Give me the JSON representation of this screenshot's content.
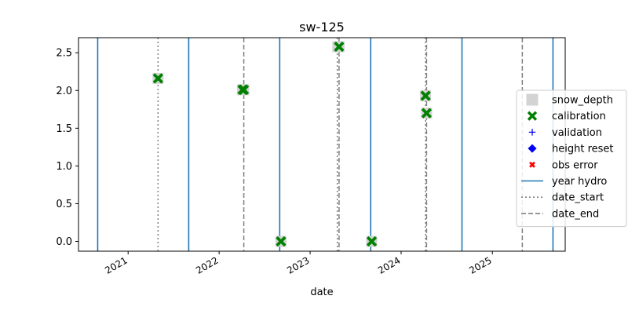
{
  "chart_data": {
    "type": "scatter",
    "title": "sw-125",
    "xlabel": "date",
    "ylabel": "",
    "xlim": [
      "2020-06-16",
      "2025-10-20"
    ],
    "ylim": [
      -0.13,
      2.7
    ],
    "x_ticks": [
      {
        "date": "2021-01-01",
        "label": "2021"
      },
      {
        "date": "2022-01-01",
        "label": "2022"
      },
      {
        "date": "2023-01-01",
        "label": "2023"
      },
      {
        "date": "2024-01-01",
        "label": "2024"
      },
      {
        "date": "2025-01-01",
        "label": "2025"
      }
    ],
    "y_ticks": [
      {
        "value": 0.0,
        "label": "0.0"
      },
      {
        "value": 0.5,
        "label": "0.5"
      },
      {
        "value": 1.0,
        "label": "1.0"
      },
      {
        "value": 1.5,
        "label": "1.5"
      },
      {
        "value": 2.0,
        "label": "2.0"
      },
      {
        "value": 2.5,
        "label": "2.5"
      }
    ],
    "grid": false,
    "legend_position": "right",
    "colors": {
      "snow_depth": "#d3d3d3",
      "calibration": "#008000",
      "validation": "#0000ff",
      "height_reset": "#0000ff",
      "obs_error": "#ff0000",
      "year_hydro": "#1f77b4",
      "date_start": "#808080",
      "date_end": "#808080"
    },
    "series": [
      {
        "name": "snow_depth",
        "marker": "square",
        "points": [
          {
            "x": "2021-05-01",
            "y": 2.16
          },
          {
            "x": "2022-04-05",
            "y": 2.01
          },
          {
            "x": "2022-04-10",
            "y": 2.01
          },
          {
            "x": "2022-09-06",
            "y": 0.0
          },
          {
            "x": "2023-04-22",
            "y": 2.58
          },
          {
            "x": "2023-04-27",
            "y": 2.58
          },
          {
            "x": "2023-09-05",
            "y": 0.0
          },
          {
            "x": "2024-04-08",
            "y": 1.93
          },
          {
            "x": "2024-04-12",
            "y": 1.7
          }
        ]
      },
      {
        "name": "calibration",
        "marker": "X",
        "points": [
          {
            "x": "2021-05-01",
            "y": 2.16
          },
          {
            "x": "2022-04-05",
            "y": 2.01
          },
          {
            "x": "2022-04-10",
            "y": 2.01
          },
          {
            "x": "2022-09-06",
            "y": 0.0
          },
          {
            "x": "2023-04-27",
            "y": 2.58
          },
          {
            "x": "2023-09-05",
            "y": 0.0
          },
          {
            "x": "2024-04-08",
            "y": 1.93
          },
          {
            "x": "2024-04-12",
            "y": 1.7
          }
        ]
      },
      {
        "name": "validation",
        "marker": "plus",
        "points": []
      },
      {
        "name": "height reset",
        "marker": "diamond",
        "points": []
      },
      {
        "name": "obs error",
        "marker": "x",
        "points": []
      }
    ],
    "vlines": [
      {
        "name": "year hydro",
        "style": "solid",
        "dates": [
          "2020-09-01",
          "2021-09-01",
          "2022-09-01",
          "2023-09-01",
          "2024-09-01",
          "2025-09-01"
        ]
      },
      {
        "name": "date_start",
        "style": "dotted",
        "dates": [
          "2021-05-01",
          "2023-04-20",
          "2024-04-08"
        ]
      },
      {
        "name": "date_end",
        "style": "dashed",
        "dates": [
          "2022-04-10",
          "2023-04-27",
          "2024-04-12",
          "2025-05-01"
        ]
      }
    ],
    "legend": [
      "snow_depth",
      "calibration",
      "validation",
      "height reset",
      "obs error",
      "year hydro",
      "date_start",
      "date_end"
    ]
  }
}
